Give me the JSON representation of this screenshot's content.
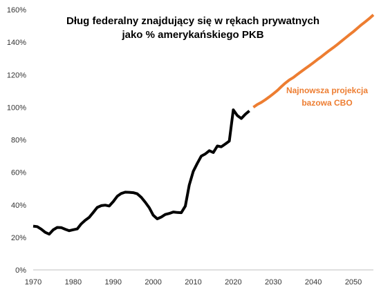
{
  "chart_data": {
    "type": "line",
    "title_lines": [
      "Dług federalny znajdujący się w rękach prywatnych",
      "jako % amerykańskiego PKB"
    ],
    "xlabel": "",
    "ylabel": "",
    "xlim": [
      1970,
      2055
    ],
    "ylim": [
      0,
      160
    ],
    "x_ticks": [
      1970,
      1980,
      1990,
      2000,
      2010,
      2020,
      2030,
      2040,
      2050
    ],
    "y_ticks": [
      "0%",
      "20%",
      "40%",
      "60%",
      "80%",
      "100%",
      "120%",
      "140%",
      "160%"
    ],
    "y_tick_values": [
      0,
      20,
      40,
      60,
      80,
      100,
      120,
      140,
      160
    ],
    "grid": false,
    "series": [
      {
        "color": "#000000",
        "x": [
          1970,
          1971,
          1972,
          1973,
          1974,
          1975,
          1976,
          1977,
          1978,
          1979,
          1980,
          1981,
          1982,
          1983,
          1984,
          1985,
          1986,
          1987,
          1988,
          1989,
          1990,
          1991,
          1992,
          1993,
          1994,
          1995,
          1996,
          1997,
          1998,
          1999,
          2000,
          2001,
          2002,
          2003,
          2004,
          2005,
          2006,
          2007,
          2008,
          2009,
          2010,
          2011,
          2012,
          2013,
          2014,
          2015,
          2016,
          2017,
          2018,
          2019,
          2020,
          2021,
          2022,
          2023,
          2024
        ],
        "values": [
          26.9,
          26.6,
          25.1,
          23.1,
          22.0,
          24.6,
          26.1,
          26.0,
          25.0,
          24.1,
          24.7,
          25.2,
          28.3,
          30.5,
          32.3,
          35.3,
          38.4,
          39.5,
          39.8,
          39.3,
          42.0,
          45.3,
          47.0,
          47.8,
          47.7,
          47.5,
          46.8,
          44.6,
          41.6,
          38.2,
          33.6,
          31.4,
          32.5,
          34.1,
          34.7,
          35.6,
          35.3,
          35.2,
          39.2,
          52.2,
          60.6,
          65.5,
          70.0,
          71.3,
          73.3,
          72.2,
          76.2,
          75.7,
          77.4,
          79.2,
          98.4,
          94.9,
          93.1,
          95.7,
          97.8
        ]
      },
      {
        "name": "Najnowsza projekcja bazowa CBO",
        "color": "#ED7D31",
        "x": [
          2025,
          2026,
          2027,
          2028,
          2029,
          2030,
          2031,
          2032,
          2033,
          2034,
          2035,
          2036,
          2037,
          2038,
          2039,
          2040,
          2041,
          2042,
          2043,
          2044,
          2045,
          2046,
          2047,
          2048,
          2049,
          2050,
          2051,
          2052,
          2053,
          2054,
          2055
        ],
        "values": [
          100.0,
          101.7,
          103.0,
          104.6,
          106.4,
          108.3,
          110.3,
          112.7,
          114.9,
          116.8,
          118.3,
          120.2,
          122.0,
          123.8,
          125.6,
          127.4,
          129.3,
          131.1,
          133.0,
          134.9,
          136.7,
          138.6,
          140.6,
          142.6,
          144.6,
          146.5,
          148.6,
          150.7,
          152.6,
          154.6,
          156.8
        ]
      }
    ],
    "annotation_lines": [
      "Najnowsza projekcja",
      "bazowa CBO"
    ],
    "annotation_color": "#ED7D31",
    "axis_color": "#BFBFBF"
  }
}
